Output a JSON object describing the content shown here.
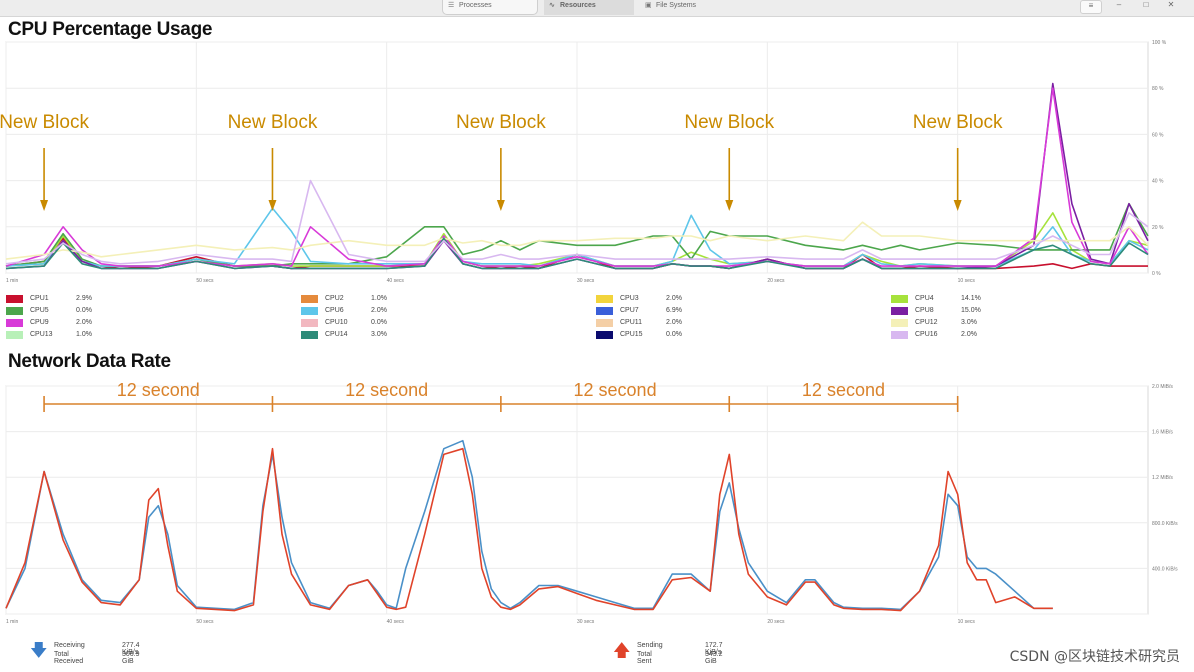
{
  "toolbar": {
    "tabs": [
      {
        "label": "Processes",
        "icon": "list-icon",
        "active": false
      },
      {
        "label": "Resources",
        "icon": "chart-icon",
        "active": true
      },
      {
        "label": "File Systems",
        "icon": "disk-icon",
        "active": false
      }
    ],
    "buttons": [
      "menu",
      "minimize",
      "maximize",
      "close"
    ]
  },
  "cpu": {
    "title": "CPU Percentage Usage",
    "legend": [
      {
        "name": "CPU1",
        "value": "2.9%",
        "color": "#c8102e"
      },
      {
        "name": "CPU2",
        "value": "1.0%",
        "color": "#e58a3c"
      },
      {
        "name": "CPU3",
        "value": "2.0%",
        "color": "#f2d43c"
      },
      {
        "name": "CPU4",
        "value": "14.1%",
        "color": "#a6e23c"
      },
      {
        "name": "CPU5",
        "value": "0.0%",
        "color": "#4ca64c"
      },
      {
        "name": "CPU6",
        "value": "2.0%",
        "color": "#5ec6ea"
      },
      {
        "name": "CPU7",
        "value": "6.9%",
        "color": "#3a5fd9"
      },
      {
        "name": "CPU8",
        "value": "15.0%",
        "color": "#7a1fa2"
      },
      {
        "name": "CPU9",
        "value": "2.0%",
        "color": "#d83ad8"
      },
      {
        "name": "CPU10",
        "value": "0.0%",
        "color": "#f2b8c0"
      },
      {
        "name": "CPU11",
        "value": "2.0%",
        "color": "#f4cfa6"
      },
      {
        "name": "CPU12",
        "value": "3.0%",
        "color": "#f4f0b8"
      },
      {
        "name": "CPU13",
        "value": "1.0%",
        "color": "#b8f0b8"
      },
      {
        "name": "CPU14",
        "value": "3.0%",
        "color": "#2e8b79"
      },
      {
        "name": "CPU15",
        "value": "0.0%",
        "color": "#0a0a6e"
      },
      {
        "name": "CPU16",
        "value": "2.0%",
        "color": "#d8b8f0"
      }
    ]
  },
  "network": {
    "title": "Network Data Rate",
    "receiving_label": "Receiving",
    "receiving_value": "277.4 KiB/s",
    "total_received_label": "Total Received",
    "total_received_value": "306.9 GiB",
    "sending_label": "Sending",
    "sending_value": "172.7 KiB/s",
    "total_sent_label": "Total Sent",
    "total_sent_value": "343.2 GiB",
    "receiving_color": "#4a90c8",
    "sending_color": "#e0432a"
  },
  "annotations": {
    "block_label": "New Block",
    "interval_label": "12 second",
    "color": "#c98a00",
    "interval_color": "#d9822b"
  },
  "watermark": "CSDN @区块链技术研究员",
  "chart_data": [
    {
      "type": "line",
      "title": "CPU Percentage Usage",
      "ylim": [
        0,
        100
      ],
      "y_ticks": [
        "0 %",
        "20 %",
        "40 %",
        "60 %",
        "80 %",
        "100 %"
      ],
      "x_ticks": [
        "1 min",
        "50 secs",
        "40 secs",
        "30 secs",
        "20 secs",
        "10 secs"
      ],
      "grid": true,
      "x_seconds": [
        60,
        58,
        57,
        56,
        55,
        54,
        52,
        50,
        48,
        46,
        45,
        44,
        42,
        40,
        38,
        37,
        36,
        35,
        34,
        33,
        32,
        30,
        28,
        26,
        25,
        24,
        23,
        22,
        20,
        18,
        16,
        15,
        14,
        13,
        12,
        10,
        8,
        6,
        5,
        4,
        3,
        2,
        1,
        0
      ],
      "series": [
        {
          "name": "CPU1",
          "values": [
            3,
            5,
            15,
            5,
            3,
            2,
            3,
            7,
            3,
            3,
            2,
            3,
            3,
            3,
            3,
            16,
            5,
            3,
            2,
            3,
            2,
            8,
            2,
            2,
            4,
            3,
            3,
            2,
            6,
            2,
            2,
            8,
            2,
            2,
            3,
            2,
            2,
            3,
            4,
            2,
            4,
            3,
            3,
            3
          ]
        },
        {
          "name": "CPU4",
          "values": [
            3,
            4,
            16,
            5,
            3,
            3,
            3,
            6,
            3,
            4,
            3,
            3,
            3,
            3,
            4,
            17,
            5,
            3,
            3,
            3,
            4,
            8,
            3,
            3,
            5,
            9,
            6,
            4,
            5,
            3,
            3,
            8,
            5,
            3,
            4,
            3,
            3,
            14,
            26,
            10,
            5,
            4,
            14,
            12
          ]
        },
        {
          "name": "CPU5",
          "values": [
            3,
            5,
            17,
            6,
            3,
            3,
            3,
            6,
            3,
            3,
            4,
            4,
            4,
            7,
            20,
            20,
            8,
            10,
            14,
            10,
            14,
            12,
            12,
            16,
            16,
            6,
            18,
            16,
            16,
            12,
            10,
            12,
            10,
            12,
            10,
            13,
            12,
            10,
            10,
            10,
            10,
            10,
            30,
            16
          ]
        },
        {
          "name": "CPU6",
          "values": [
            3,
            4,
            14,
            5,
            3,
            3,
            3,
            6,
            4,
            28,
            18,
            5,
            4,
            4,
            4,
            15,
            5,
            4,
            4,
            4,
            3,
            8,
            3,
            3,
            5,
            25,
            10,
            4,
            5,
            3,
            3,
            8,
            4,
            3,
            4,
            3,
            3,
            10,
            20,
            8,
            5,
            4,
            14,
            10
          ]
        },
        {
          "name": "CPU8",
          "values": [
            2,
            3,
            14,
            5,
            2,
            2,
            2,
            5,
            2,
            3,
            2,
            2,
            2,
            2,
            3,
            14,
            4,
            2,
            2,
            2,
            2,
            6,
            2,
            2,
            4,
            3,
            3,
            2,
            6,
            2,
            2,
            6,
            2,
            2,
            2,
            2,
            3,
            12,
            82,
            30,
            6,
            4,
            30,
            14
          ]
        },
        {
          "name": "CPU9",
          "values": [
            3,
            8,
            20,
            10,
            4,
            3,
            3,
            5,
            3,
            4,
            3,
            20,
            6,
            3,
            4,
            16,
            5,
            3,
            3,
            3,
            3,
            7,
            3,
            3,
            4,
            3,
            3,
            3,
            5,
            3,
            3,
            6,
            3,
            3,
            3,
            3,
            3,
            15,
            80,
            22,
            5,
            4,
            20,
            8
          ]
        },
        {
          "name": "CPU12",
          "values": [
            6,
            8,
            10,
            9,
            7,
            8,
            10,
            12,
            10,
            11,
            10,
            12,
            14,
            12,
            12,
            15,
            13,
            14,
            12,
            12,
            14,
            14,
            15,
            15,
            16,
            16,
            14,
            16,
            14,
            16,
            14,
            22,
            16,
            16,
            16,
            14,
            14,
            14,
            14,
            14,
            14,
            14,
            20,
            12
          ]
        },
        {
          "name": "CPU14",
          "values": [
            2,
            3,
            13,
            4,
            2,
            2,
            2,
            5,
            2,
            3,
            2,
            2,
            2,
            2,
            3,
            15,
            4,
            2,
            2,
            2,
            2,
            6,
            2,
            2,
            4,
            3,
            3,
            2,
            5,
            2,
            2,
            6,
            2,
            2,
            2,
            2,
            2,
            10,
            12,
            8,
            4,
            3,
            13,
            8
          ]
        },
        {
          "name": "CPU16",
          "values": [
            4,
            6,
            13,
            8,
            5,
            4,
            5,
            8,
            6,
            6,
            5,
            40,
            8,
            5,
            5,
            14,
            6,
            6,
            8,
            6,
            6,
            8,
            6,
            6,
            6,
            6,
            6,
            6,
            7,
            6,
            6,
            10,
            6,
            6,
            6,
            6,
            6,
            12,
            16,
            12,
            8,
            8,
            26,
            20
          ]
        }
      ]
    },
    {
      "type": "line",
      "title": "Network Data Rate",
      "ylim": [
        0,
        2.0
      ],
      "y_unit": "MiB/s",
      "y_ticks": [
        "",
        "400.0 KiB/s",
        "800.0 KiB/s",
        "1.2 MiB/s",
        "1.6 MiB/s",
        "2.0 MiB/s"
      ],
      "x_ticks": [
        "1 min",
        "50 secs",
        "40 secs",
        "30 secs",
        "20 secs",
        "10 secs"
      ],
      "grid": true,
      "annotations": [
        {
          "text": "New Block",
          "x": 58
        },
        {
          "text": "New Block",
          "x": 46
        },
        {
          "text": "New Block",
          "x": 34
        },
        {
          "text": "New Block",
          "x": 22
        },
        {
          "text": "New Block",
          "x": 10
        },
        {
          "text": "12 second",
          "from": 58,
          "to": 46
        },
        {
          "text": "12 second",
          "from": 46,
          "to": 34
        },
        {
          "text": "12 second",
          "from": 34,
          "to": 22
        },
        {
          "text": "12 second",
          "from": 22,
          "to": 10
        }
      ],
      "x_seconds": [
        60,
        59,
        58,
        57,
        56,
        55,
        54,
        53,
        52.5,
        52,
        51.5,
        51,
        50,
        49,
        48,
        47,
        46.5,
        46,
        45.5,
        45,
        44,
        43,
        42,
        41,
        40.5,
        40,
        39.5,
        39,
        38,
        37,
        36,
        35.5,
        35,
        34.5,
        34,
        33.5,
        33,
        32,
        31,
        30,
        29,
        28,
        27,
        26,
        25,
        24,
        23,
        22.5,
        22,
        21.5,
        21,
        20,
        19,
        18,
        17.5,
        17,
        16.5,
        16,
        15,
        14,
        13,
        12,
        11,
        10.5,
        10,
        9.5,
        9,
        8.5,
        8,
        7,
        6,
        5
      ],
      "series": [
        {
          "name": "Receiving",
          "values": [
            0.05,
            0.4,
            1.25,
            0.7,
            0.3,
            0.12,
            0.1,
            0.3,
            0.85,
            0.95,
            0.7,
            0.25,
            0.06,
            0.05,
            0.04,
            0.1,
            0.95,
            1.4,
            0.85,
            0.45,
            0.1,
            0.05,
            0.25,
            0.3,
            0.2,
            0.08,
            0.05,
            0.4,
            0.9,
            1.45,
            1.52,
            1.2,
            0.55,
            0.22,
            0.1,
            0.05,
            0.1,
            0.25,
            0.25,
            0.2,
            0.15,
            0.1,
            0.05,
            0.05,
            0.35,
            0.35,
            0.2,
            0.9,
            1.15,
            0.75,
            0.45,
            0.2,
            0.1,
            0.3,
            0.3,
            0.2,
            0.1,
            0.06,
            0.05,
            0.05,
            0.04,
            0.2,
            0.5,
            1.05,
            0.95,
            0.5,
            0.4,
            0.4,
            0.35,
            0.2,
            0.05,
            0.05
          ]
        },
        {
          "name": "Sending",
          "values": [
            0.05,
            0.45,
            1.25,
            0.65,
            0.28,
            0.1,
            0.08,
            0.3,
            1.0,
            1.1,
            0.6,
            0.2,
            0.05,
            0.04,
            0.03,
            0.08,
            0.9,
            1.45,
            0.7,
            0.35,
            0.08,
            0.04,
            0.25,
            0.3,
            0.18,
            0.06,
            0.04,
            0.06,
            0.7,
            1.4,
            1.45,
            1.05,
            0.4,
            0.15,
            0.06,
            0.04,
            0.08,
            0.22,
            0.24,
            0.18,
            0.12,
            0.08,
            0.04,
            0.04,
            0.3,
            0.32,
            0.2,
            1.05,
            1.4,
            0.7,
            0.35,
            0.15,
            0.08,
            0.28,
            0.28,
            0.18,
            0.08,
            0.05,
            0.04,
            0.04,
            0.03,
            0.2,
            0.6,
            1.25,
            1.05,
            0.45,
            0.3,
            0.3,
            0.1,
            0.15,
            0.05,
            0.05
          ]
        }
      ]
    }
  ]
}
